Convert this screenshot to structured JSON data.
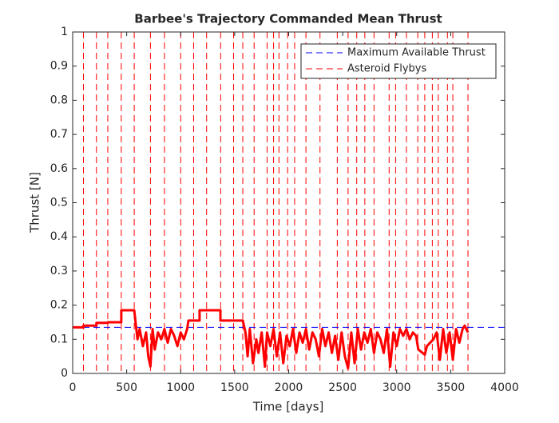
{
  "chart_data": {
    "type": "line",
    "title": "Barbee's Trajectory Commanded Mean Thrust",
    "xlabel": "Time [days]",
    "ylabel": "Thrust [N]",
    "xlim": [
      0,
      4000
    ],
    "xticks": [
      0,
      500,
      1000,
      1500,
      2000,
      2500,
      3000,
      3500,
      4000
    ],
    "ylim": [
      0,
      1
    ],
    "yticks": [
      0,
      0.1,
      0.2,
      0.3,
      0.4,
      0.5,
      0.6,
      0.7,
      0.8,
      0.9,
      1
    ],
    "legend": "upper right",
    "max_thrust": {
      "name": "Maximum Available Thrust",
      "color": "#0000ff",
      "value": 0.135
    },
    "flybys": {
      "name": "Asteroid Flybys",
      "color": "#ff0000",
      "x": [
        100,
        220,
        325,
        450,
        570,
        720,
        850,
        1000,
        1120,
        1240,
        1370,
        1490,
        1575,
        1680,
        1800,
        1860,
        1910,
        1990,
        2055,
        2160,
        2290,
        2450,
        2550,
        2630,
        2705,
        2790,
        2930,
        2990,
        3090,
        3195,
        3260,
        3330,
        3385,
        3470,
        3520,
        3660
      ]
    },
    "series": [
      {
        "color": "#ff0000",
        "x": [
          0,
          100,
          100,
          220,
          220,
          325,
          325,
          450,
          450,
          570,
          600,
          620,
          650,
          680,
          700,
          720,
          740,
          760,
          790,
          820,
          850,
          880,
          910,
          940,
          970,
          1000,
          1030,
          1060,
          1072,
          1175,
          1175,
          1368,
          1368,
          1575,
          1600,
          1620,
          1640,
          1670,
          1700,
          1720,
          1750,
          1780,
          1800,
          1830,
          1860,
          1890,
          1920,
          1950,
          1980,
          2010,
          2040,
          2070,
          2100,
          2130,
          2160,
          2190,
          2220,
          2250,
          2280,
          2310,
          2340,
          2370,
          2400,
          2430,
          2460,
          2490,
          2520,
          2550,
          2580,
          2610,
          2640,
          2670,
          2700,
          2730,
          2760,
          2790,
          2820,
          2850,
          2880,
          2910,
          2940,
          2970,
          3000,
          3030,
          3060,
          3090,
          3120,
          3150,
          3180,
          3200,
          3260,
          3280,
          3310,
          3340,
          3370,
          3400,
          3430,
          3460,
          3490,
          3520,
          3550,
          3580,
          3610,
          3630,
          3660
        ],
        "values": [
          0.135,
          0.135,
          0.14,
          0.14,
          0.148,
          0.148,
          0.15,
          0.15,
          0.185,
          0.185,
          0.1,
          0.13,
          0.08,
          0.12,
          0.05,
          0.02,
          0.13,
          0.07,
          0.12,
          0.1,
          0.13,
          0.09,
          0.13,
          0.11,
          0.08,
          0.12,
          0.1,
          0.13,
          0.155,
          0.155,
          0.185,
          0.185,
          0.155,
          0.155,
          0.12,
          0.05,
          0.13,
          0.03,
          0.1,
          0.06,
          0.12,
          0.02,
          0.12,
          0.08,
          0.13,
          0.05,
          0.12,
          0.03,
          0.11,
          0.08,
          0.13,
          0.06,
          0.12,
          0.09,
          0.13,
          0.07,
          0.12,
          0.1,
          0.05,
          0.13,
          0.08,
          0.12,
          0.06,
          0.11,
          0.04,
          0.12,
          0.05,
          0.015,
          0.12,
          0.03,
          0.13,
          0.07,
          0.12,
          0.09,
          0.13,
          0.06,
          0.12,
          0.1,
          0.06,
          0.13,
          0.02,
          0.12,
          0.08,
          0.13,
          0.11,
          0.13,
          0.1,
          0.12,
          0.11,
          0.07,
          0.055,
          0.08,
          0.09,
          0.1,
          0.12,
          0.04,
          0.13,
          0.06,
          0.12,
          0.04,
          0.13,
          0.09,
          0.13,
          0.14,
          0.12
        ]
      }
    ]
  }
}
